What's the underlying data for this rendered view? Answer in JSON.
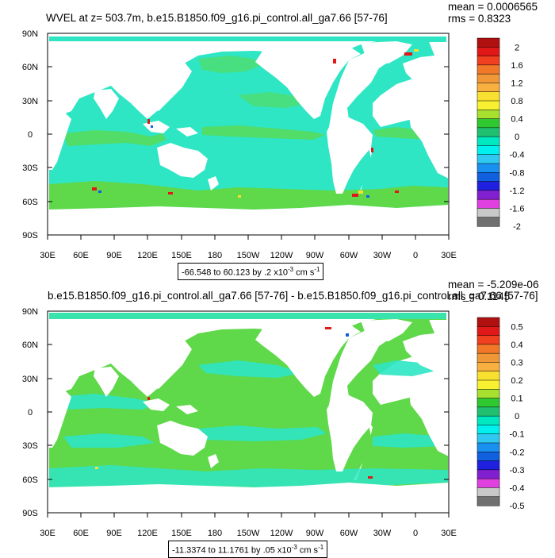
{
  "panels": [
    {
      "title": "WVEL at z= 503.7m, b.e15.B1850.f09_g16.pi_control.all_ga7.66 [57-76]",
      "mean_text": "mean = 0.0006565",
      "rms_text": "rms = 0.8323",
      "info": {
        "range": "-66.548 to 60.123 by .2 x10",
        "exp": "-3",
        "units": " cm s",
        "unit_exp": "-1"
      }
    },
    {
      "title": "b.e15.B1850.f09_g16.pi_control.all_ga7.66 [57-76] - b.e15.B1850.f09_g16.pi_control.all_ga7.66 [57-76]",
      "mean_text": "mean = -5.209e-06",
      "rms_text": "rms = 0.1145",
      "info": {
        "range": "-11.3374 to 11.1761 by .05 x10",
        "exp": "-3",
        "units": " cm s",
        "unit_exp": "-1"
      }
    }
  ],
  "chart_data": [
    {
      "type": "heatmap",
      "title": "WVEL at z= 503.7m, b.e15.B1850.f09_g16.pi_control.all_ga7.66 [57-76]",
      "x_ticks": [
        "30E",
        "60E",
        "90E",
        "120E",
        "150E",
        "180",
        "150W",
        "120W",
        "90W",
        "60W",
        "30W",
        "0",
        "30E"
      ],
      "y_ticks": [
        "90N",
        "60N",
        "30N",
        "0",
        "30S",
        "60S",
        "90S"
      ],
      "xlim": [
        30,
        390
      ],
      "ylim": [
        -90,
        90
      ],
      "colorbar_labels": [
        "2",
        "1.6",
        "1.2",
        "0.8",
        "0.4",
        "0",
        "-0.4",
        "-0.8",
        "-1.2",
        "-1.6",
        "-2"
      ],
      "mean": 0.0006565,
      "rms": 0.8323,
      "min": -66.548,
      "max": 60.123,
      "interval": 0.2
    },
    {
      "type": "heatmap",
      "title": "b.e15.B1850.f09_g16.pi_control.all_ga7.66 [57-76] - b.e15.B1850.f09_g16.pi_control.all_ga7.66 [57-76]",
      "x_ticks": [
        "30E",
        "60E",
        "90E",
        "120E",
        "150E",
        "180",
        "150W",
        "120W",
        "90W",
        "60W",
        "30W",
        "0",
        "30E"
      ],
      "y_ticks": [
        "90N",
        "60N",
        "30N",
        "0",
        "30S",
        "60S",
        "90S"
      ],
      "xlim": [
        30,
        390
      ],
      "ylim": [
        -90,
        90
      ],
      "colorbar_labels": [
        "0.5",
        "0.4",
        "0.3",
        "0.2",
        "0.1",
        "0",
        "-0.1",
        "-0.2",
        "-0.3",
        "-0.4",
        "-0.5"
      ],
      "mean": -5.209e-06,
      "rms": 0.1145,
      "min": -11.3374,
      "max": 11.1761,
      "interval": 0.05
    }
  ],
  "colors": {
    "colorbar": [
      "#b01010",
      "#e01818",
      "#f04020",
      "#f07828",
      "#f09838",
      "#f8b040",
      "#f8e030",
      "#f8f030",
      "#a8e030",
      "#30c830",
      "#20c070",
      "#00e8c0",
      "#00f0f0",
      "#30c8f0",
      "#1890f0",
      "#1060e0",
      "#2020e0",
      "#8020d0",
      "#e040e0",
      "#c8c8c8",
      "#707070"
    ],
    "ocean_base": "#2ee6c4",
    "ocean_green": "#5fd84a",
    "land": "#ffffff"
  }
}
